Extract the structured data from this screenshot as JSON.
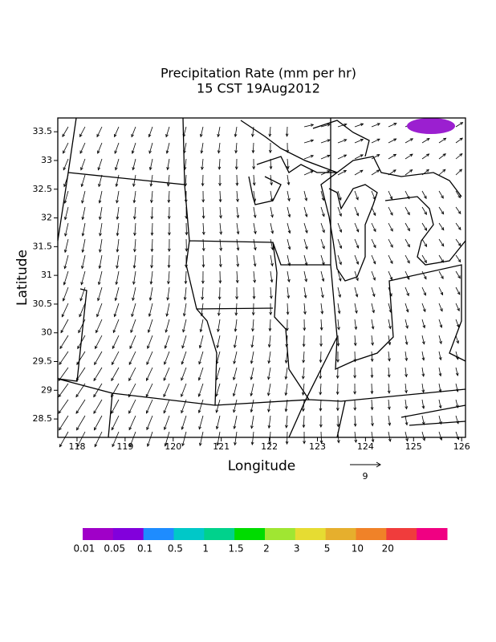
{
  "chart_data": {
    "type": "vector-map",
    "title": "Precipitation Rate (mm per hr)",
    "subtitle": "15 CST 19Aug2012",
    "x_label": "Longitude",
    "y_label": "Latitude",
    "xlim": [
      117.6,
      126.08
    ],
    "ylim": [
      28.18,
      33.74
    ],
    "xticks": [
      118,
      119,
      120,
      121,
      122,
      123,
      124,
      125,
      126
    ],
    "yticks": [
      28.5,
      29,
      29.5,
      30,
      30.5,
      31,
      31.5,
      32,
      32.5,
      33,
      33.5
    ],
    "vector_reference": "9",
    "colorbar": {
      "labels": [
        "0.01",
        "0.05",
        "0.1",
        "0.5",
        "1",
        "1.5",
        "2",
        "3",
        "5",
        "10",
        "20"
      ],
      "colors": [
        "#a000c8",
        "#8200dc",
        "#1e8cff",
        "#00c8c8",
        "#00d28c",
        "#00dc00",
        "#a0e632",
        "#e6dc32",
        "#e6af2d",
        "#f08228",
        "#f03c3c",
        "#f00082"
      ]
    }
  }
}
